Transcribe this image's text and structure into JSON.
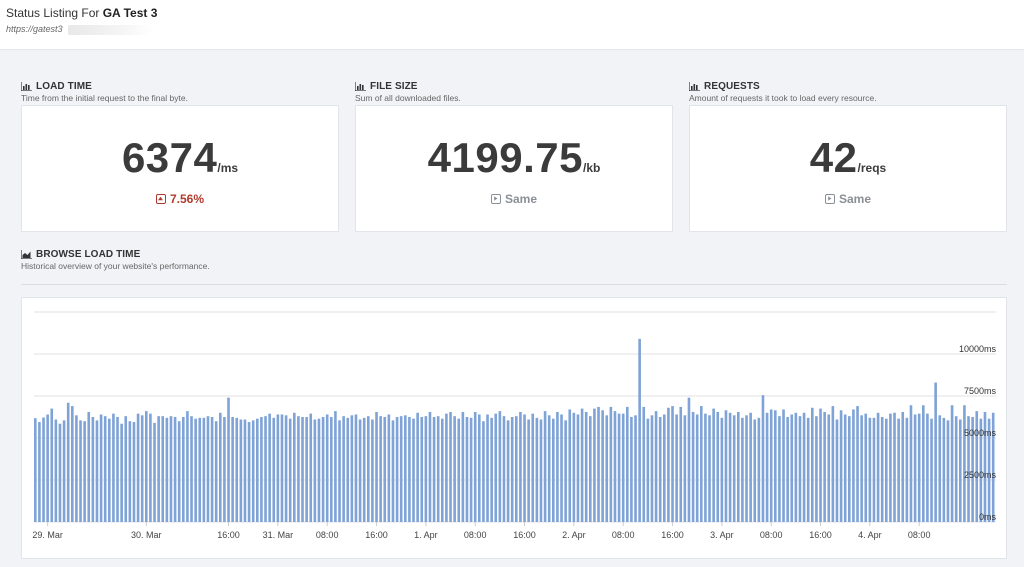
{
  "header": {
    "title_prefix": "Status Listing For",
    "title_name": "GA Test 3",
    "url": "https://gatest3"
  },
  "cards": [
    {
      "label": "LOAD TIME",
      "description": "Time from the initial request to the final byte.",
      "value": "6374",
      "unit": "/ms",
      "change": "7.56%",
      "change_type": "up"
    },
    {
      "label": "FILE SIZE",
      "description": "Sum of all downloaded files.",
      "value": "4199.75",
      "unit": "/kb",
      "change": "Same",
      "change_type": "same"
    },
    {
      "label": "REQUESTS",
      "description": "Amount of requests it took to load every resource.",
      "value": "42",
      "unit": "/reqs",
      "change": "Same",
      "change_type": "same"
    }
  ],
  "browse": {
    "label": "BROWSE LOAD TIME",
    "description": "Historical overview of your website's performance."
  },
  "colors": {
    "bar": "#7fa3d6",
    "up": "#b03a2e",
    "same": "#8a8f95"
  },
  "chart_data": {
    "type": "bar",
    "ylabel": "",
    "ylim": [
      0,
      12500
    ],
    "y_ticks": [
      {
        "value": 0,
        "label": "0ms"
      },
      {
        "value": 2500,
        "label": "2500ms"
      },
      {
        "value": 5000,
        "label": "5000ms"
      },
      {
        "value": 7500,
        "label": "7500ms"
      },
      {
        "value": 10000,
        "label": "10000ms"
      }
    ],
    "x_ticks": [
      {
        "index": 3,
        "label": "29. Mar"
      },
      {
        "index": 27,
        "label": "30. Mar"
      },
      {
        "index": 47,
        "label": "16:00"
      },
      {
        "index": 59,
        "label": "31. Mar"
      },
      {
        "index": 71,
        "label": "08:00"
      },
      {
        "index": 83,
        "label": "16:00"
      },
      {
        "index": 95,
        "label": "1. Apr"
      },
      {
        "index": 107,
        "label": "08:00"
      },
      {
        "index": 119,
        "label": "16:00"
      },
      {
        "index": 131,
        "label": "2. Apr"
      },
      {
        "index": 143,
        "label": "08:00"
      },
      {
        "index": 155,
        "label": "16:00"
      },
      {
        "index": 167,
        "label": "3. Apr"
      },
      {
        "index": 179,
        "label": "08:00"
      },
      {
        "index": 191,
        "label": "16:00"
      },
      {
        "index": 203,
        "label": "4. Apr"
      },
      {
        "index": 215,
        "label": "08:00"
      }
    ],
    "values": [
      6180,
      5950,
      6220,
      6400,
      6750,
      6100,
      5850,
      6050,
      7100,
      6900,
      6350,
      6050,
      6000,
      6550,
      6250,
      6050,
      6400,
      6300,
      6150,
      6450,
      6250,
      5850,
      6300,
      6000,
      5950,
      6450,
      6350,
      6600,
      6450,
      5900,
      6300,
      6300,
      6200,
      6300,
      6250,
      6000,
      6250,
      6600,
      6300,
      6150,
      6200,
      6200,
      6300,
      6250,
      6000,
      6500,
      6250,
      7400,
      6250,
      6200,
      6100,
      6100,
      5950,
      6050,
      6150,
      6250,
      6300,
      6450,
      6200,
      6400,
      6400,
      6350,
      6150,
      6500,
      6300,
      6250,
      6250,
      6450,
      6100,
      6150,
      6250,
      6400,
      6250,
      6600,
      6050,
      6300,
      6200,
      6350,
      6400,
      6100,
      6200,
      6300,
      6100,
      6550,
      6300,
      6250,
      6400,
      6050,
      6250,
      6300,
      6350,
      6250,
      6150,
      6500,
      6250,
      6300,
      6550,
      6250,
      6300,
      6150,
      6450,
      6550,
      6300,
      6150,
      6550,
      6250,
      6200,
      6550,
      6400,
      6000,
      6400,
      6200,
      6450,
      6600,
      6300,
      6050,
      6250,
      6300,
      6550,
      6400,
      6100,
      6450,
      6200,
      6100,
      6600,
      6350,
      6150,
      6550,
      6400,
      6050,
      6700,
      6500,
      6400,
      6750,
      6550,
      6300,
      6750,
      6850,
      6650,
      6350,
      6850,
      6600,
      6450,
      6450,
      6850,
      6250,
      6350,
      10900,
      6850,
      6150,
      6350,
      6600,
      6250,
      6400,
      6800,
      6900,
      6400,
      6850,
      6350,
      7400,
      6550,
      6400,
      6900,
      6450,
      6350,
      6750,
      6550,
      6200,
      6650,
      6500,
      6350,
      6550,
      6200,
      6350,
      6500,
      6100,
      6200,
      7550,
      6500,
      6700,
      6650,
      6300,
      6700,
      6250,
      6400,
      6500,
      6300,
      6500,
      6200,
      6800,
      6300,
      6750,
      6550,
      6400,
      6900,
      6100,
      6650,
      6400,
      6300,
      6700,
      6900,
      6350,
      6450,
      6200,
      6200,
      6500,
      6250,
      6150,
      6450,
      6500,
      6150,
      6550,
      6200,
      6950,
      6400,
      6450,
      6950,
      6450,
      6150,
      8300,
      6350,
      6200,
      6050,
      6950,
      6300,
      6100,
      6950,
      6300,
      6250,
      6600,
      6150,
      6550,
      6150,
      6500
    ]
  }
}
